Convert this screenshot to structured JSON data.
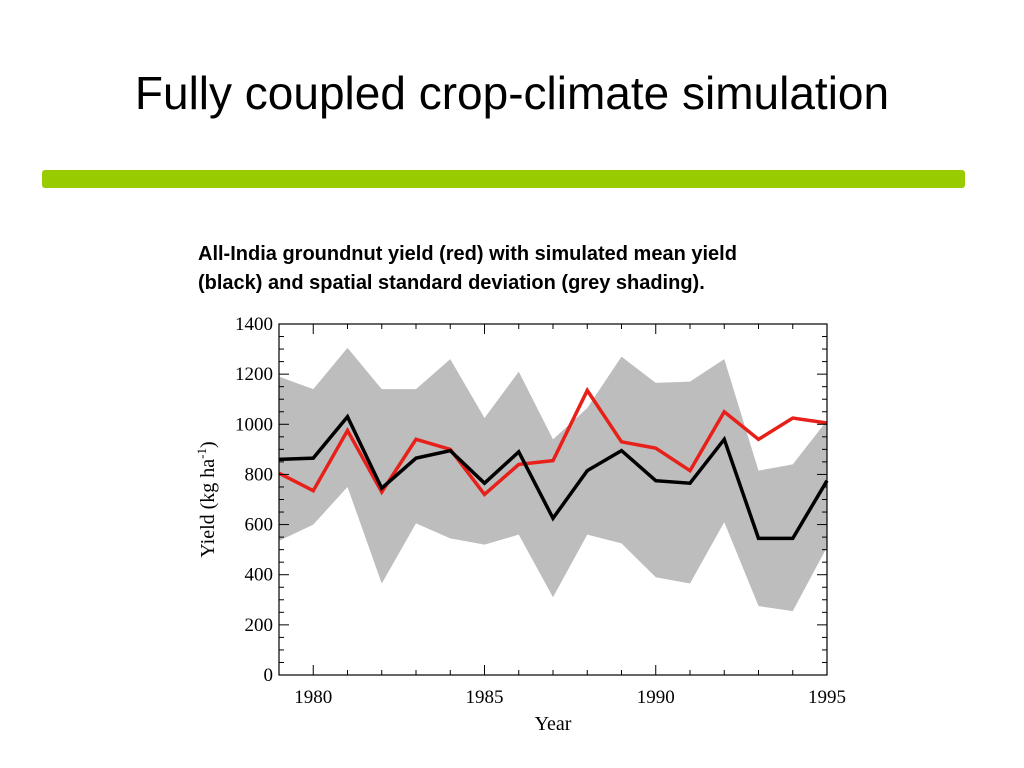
{
  "slide": {
    "title": "Fully coupled crop-climate simulation",
    "accent_color": "#99cc00",
    "caption_lines": [
      "All-India groundnut yield (red) with simulated mean yield",
      "(black) and spatial standard deviation (grey shading)."
    ]
  },
  "chart_data": {
    "type": "line",
    "title": "",
    "xlabel": "Year",
    "ylabel": "Yield (kg ha",
    "ylabel_sup": "-1",
    "ylabel_close": ")",
    "xlim": [
      1979,
      1995
    ],
    "ylim": [
      0,
      1400
    ],
    "xticks": [
      1980,
      1985,
      1990,
      1995
    ],
    "yticks": [
      0,
      200,
      400,
      600,
      800,
      1000,
      1200,
      1400
    ],
    "grid": false,
    "x": [
      1979,
      1980,
      1981,
      1982,
      1983,
      1984,
      1985,
      1986,
      1987,
      1988,
      1989,
      1990,
      1991,
      1992,
      1993,
      1994,
      1995
    ],
    "series": [
      {
        "role": "observed",
        "color": "#e8201a",
        "values": [
          805,
          735,
          975,
          730,
          940,
          900,
          720,
          840,
          855,
          1135,
          930,
          905,
          815,
          1050,
          940,
          1025,
          1005
        ]
      },
      {
        "role": "simulated-mean",
        "color": "#000000",
        "values": [
          860,
          865,
          1030,
          745,
          865,
          895,
          765,
          890,
          625,
          815,
          895,
          775,
          765,
          940,
          545,
          545,
          775
        ]
      }
    ],
    "band": {
      "role": "spatial-std-dev",
      "color": "#bdbdbd",
      "upper": [
        1190,
        1140,
        1305,
        1140,
        1140,
        1260,
        1025,
        1210,
        940,
        1065,
        1270,
        1165,
        1170,
        1260,
        815,
        840,
        1015
      ],
      "lower": [
        535,
        600,
        750,
        365,
        605,
        545,
        520,
        560,
        310,
        560,
        525,
        390,
        365,
        610,
        275,
        255,
        510
      ]
    }
  }
}
